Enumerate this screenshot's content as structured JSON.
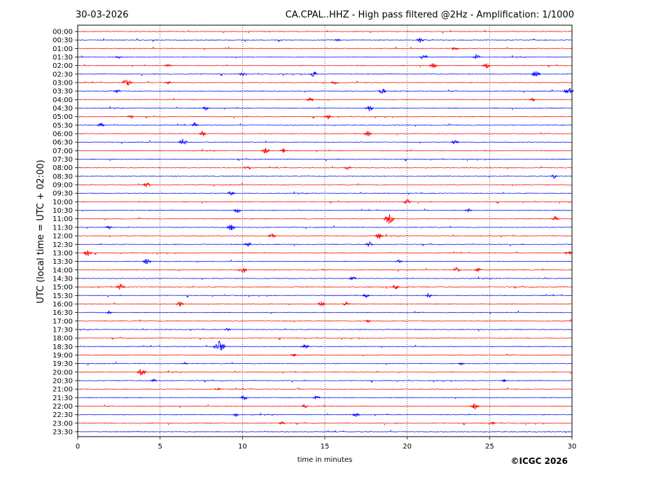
{
  "chart_data": {
    "type": "line",
    "title": "CA.CPAL..HHZ - High pass filtered @2Hz - Amplification: 1/1000",
    "date": "30-03-2026",
    "xlabel": "time in minutes",
    "ylabel": "UTC (local time = UTC + 02:00)",
    "xlim": [
      0,
      30
    ],
    "x_ticks": [
      0,
      5,
      10,
      15,
      20,
      25,
      30
    ],
    "x_tick_labels": [
      "0",
      "5",
      "10",
      "15",
      "20",
      "25",
      "30"
    ],
    "vertical_gridlines_at": [
      5,
      10,
      15,
      20,
      25
    ],
    "trace_colors": [
      "#ff0000",
      "#0000ff"
    ],
    "rows": [
      "00:00",
      "00:30",
      "01:00",
      "01:30",
      "02:00",
      "02:30",
      "03:00",
      "03:30",
      "04:00",
      "04:30",
      "05:00",
      "05:30",
      "06:00",
      "06:30",
      "07:00",
      "07:30",
      "08:00",
      "08:30",
      "09:00",
      "09:30",
      "10:00",
      "10:30",
      "11:00",
      "11:30",
      "12:00",
      "12:30",
      "13:00",
      "13:30",
      "14:00",
      "14:30",
      "15:00",
      "15:30",
      "16:00",
      "16:30",
      "17:00",
      "17:30",
      "18:00",
      "18:30",
      "19:00",
      "19:30",
      "20:00",
      "20:30",
      "21:00",
      "21:30",
      "22:00",
      "22:30",
      "23:00",
      "23:30"
    ],
    "events": [
      {
        "row": "00:30",
        "t": 20.8,
        "amp": 0.5
      },
      {
        "row": "00:30",
        "t": 15.8,
        "amp": 0.25
      },
      {
        "row": "01:00",
        "t": 22.9,
        "amp": 0.4
      },
      {
        "row": "01:30",
        "t": 2.5,
        "amp": 0.3
      },
      {
        "row": "01:30",
        "t": 21.0,
        "amp": 0.5
      },
      {
        "row": "01:30",
        "t": 24.2,
        "amp": 0.45
      },
      {
        "row": "02:00",
        "t": 5.5,
        "amp": 0.4
      },
      {
        "row": "02:00",
        "t": 21.6,
        "amp": 0.5
      },
      {
        "row": "02:00",
        "t": 24.8,
        "amp": 0.5
      },
      {
        "row": "02:30",
        "t": 10.0,
        "amp": 0.35
      },
      {
        "row": "02:30",
        "t": 14.3,
        "amp": 0.55
      },
      {
        "row": "02:30",
        "t": 27.8,
        "amp": 0.6
      },
      {
        "row": "03:00",
        "t": 3.0,
        "amp": 0.7
      },
      {
        "row": "03:00",
        "t": 15.6,
        "amp": 0.4
      },
      {
        "row": "03:00",
        "t": 5.5,
        "amp": 0.3
      },
      {
        "row": "03:30",
        "t": 2.4,
        "amp": 0.35
      },
      {
        "row": "03:30",
        "t": 18.5,
        "amp": 0.5
      },
      {
        "row": "03:30",
        "t": 29.8,
        "amp": 0.65
      },
      {
        "row": "04:00",
        "t": 14.1,
        "amp": 0.4
      },
      {
        "row": "04:00",
        "t": 27.6,
        "amp": 0.3
      },
      {
        "row": "04:30",
        "t": 7.8,
        "amp": 0.4
      },
      {
        "row": "04:30",
        "t": 17.7,
        "amp": 0.55
      },
      {
        "row": "05:00",
        "t": 3.2,
        "amp": 0.35
      },
      {
        "row": "05:00",
        "t": 15.2,
        "amp": 0.4
      },
      {
        "row": "05:30",
        "t": 1.4,
        "amp": 0.4
      },
      {
        "row": "05:30",
        "t": 7.1,
        "amp": 0.4
      },
      {
        "row": "06:00",
        "t": 7.6,
        "amp": 0.45
      },
      {
        "row": "06:00",
        "t": 17.6,
        "amp": 0.45
      },
      {
        "row": "06:30",
        "t": 6.4,
        "amp": 0.6
      },
      {
        "row": "06:30",
        "t": 22.9,
        "amp": 0.45
      },
      {
        "row": "07:00",
        "t": 11.4,
        "amp": 0.5
      },
      {
        "row": "07:00",
        "t": 12.5,
        "amp": 0.35
      },
      {
        "row": "08:00",
        "t": 10.3,
        "amp": 0.45
      },
      {
        "row": "08:00",
        "t": 16.4,
        "amp": 0.4
      },
      {
        "row": "08:30",
        "t": 28.9,
        "amp": 0.35
      },
      {
        "row": "09:00",
        "t": 4.2,
        "amp": 0.5
      },
      {
        "row": "09:30",
        "t": 9.3,
        "amp": 0.4
      },
      {
        "row": "10:00",
        "t": 20.0,
        "amp": 0.45
      },
      {
        "row": "10:30",
        "t": 9.7,
        "amp": 0.45
      },
      {
        "row": "10:30",
        "t": 23.7,
        "amp": 0.35
      },
      {
        "row": "11:00",
        "t": 18.9,
        "amp": 0.8
      },
      {
        "row": "11:00",
        "t": 29.0,
        "amp": 0.45
      },
      {
        "row": "11:30",
        "t": 9.3,
        "amp": 0.6
      },
      {
        "row": "11:30",
        "t": 1.9,
        "amp": 0.35
      },
      {
        "row": "12:00",
        "t": 18.3,
        "amp": 0.55
      },
      {
        "row": "12:00",
        "t": 11.8,
        "amp": 0.45
      },
      {
        "row": "12:30",
        "t": 10.3,
        "amp": 0.45
      },
      {
        "row": "12:30",
        "t": 17.7,
        "amp": 0.45
      },
      {
        "row": "13:00",
        "t": 0.6,
        "amp": 0.55
      },
      {
        "row": "13:00",
        "t": 29.8,
        "amp": 0.45
      },
      {
        "row": "13:30",
        "t": 4.2,
        "amp": 0.55
      },
      {
        "row": "13:30",
        "t": 19.5,
        "amp": 0.35
      },
      {
        "row": "14:00",
        "t": 10.0,
        "amp": 0.6
      },
      {
        "row": "14:00",
        "t": 23.0,
        "amp": 0.5
      },
      {
        "row": "14:00",
        "t": 24.3,
        "amp": 0.4
      },
      {
        "row": "14:30",
        "t": 16.7,
        "amp": 0.4
      },
      {
        "row": "15:00",
        "t": 2.6,
        "amp": 0.55
      },
      {
        "row": "15:00",
        "t": 19.3,
        "amp": 0.45
      },
      {
        "row": "15:30",
        "t": 17.5,
        "amp": 0.35
      },
      {
        "row": "15:30",
        "t": 21.3,
        "amp": 0.35
      },
      {
        "row": "16:00",
        "t": 6.2,
        "amp": 0.45
      },
      {
        "row": "16:00",
        "t": 14.8,
        "amp": 0.45
      },
      {
        "row": "16:00",
        "t": 16.3,
        "amp": 0.45
      },
      {
        "row": "16:30",
        "t": 1.9,
        "amp": 0.3
      },
      {
        "row": "17:00",
        "t": 17.6,
        "amp": 0.25
      },
      {
        "row": "17:30",
        "t": 9.1,
        "amp": 0.3
      },
      {
        "row": "18:30",
        "t": 8.6,
        "amp": 1.0
      },
      {
        "row": "18:30",
        "t": 13.8,
        "amp": 0.5
      },
      {
        "row": "19:00",
        "t": 13.1,
        "amp": 0.3
      },
      {
        "row": "19:30",
        "t": 6.5,
        "amp": 0.25
      },
      {
        "row": "19:30",
        "t": 23.3,
        "amp": 0.3
      },
      {
        "row": "20:00",
        "t": 3.9,
        "amp": 0.7
      },
      {
        "row": "20:30",
        "t": 4.6,
        "amp": 0.3
      },
      {
        "row": "20:30",
        "t": 25.9,
        "amp": 0.25
      },
      {
        "row": "21:00",
        "t": 8.5,
        "amp": 0.3
      },
      {
        "row": "21:30",
        "t": 10.1,
        "amp": 0.45
      },
      {
        "row": "21:30",
        "t": 14.5,
        "amp": 0.4
      },
      {
        "row": "22:00",
        "t": 24.1,
        "amp": 0.55
      },
      {
        "row": "22:00",
        "t": 13.8,
        "amp": 0.35
      },
      {
        "row": "22:30",
        "t": 9.6,
        "amp": 0.3
      },
      {
        "row": "22:30",
        "t": 16.9,
        "amp": 0.4
      },
      {
        "row": "23:00",
        "t": 12.4,
        "amp": 0.3
      },
      {
        "row": "23:00",
        "t": 25.2,
        "amp": 0.25
      }
    ]
  },
  "footer": {
    "copyright": "©ICGC 2026"
  }
}
